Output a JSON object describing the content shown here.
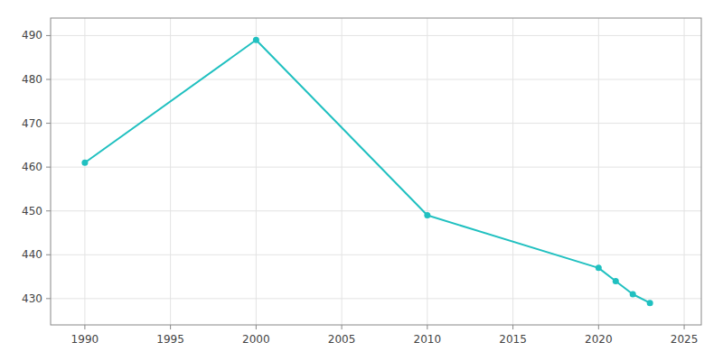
{
  "chart_data": {
    "type": "line",
    "x": [
      1990,
      2000,
      2010,
      2020,
      2021,
      2022,
      2023
    ],
    "values": [
      461,
      489,
      449,
      437,
      434,
      431,
      429
    ],
    "color": "#20c0c0",
    "marker": "circle",
    "xlim": [
      1988,
      2026
    ],
    "ylim": [
      424,
      494
    ],
    "xticks": [
      1990,
      1995,
      2000,
      2005,
      2010,
      2015,
      2020,
      2025
    ],
    "yticks": [
      430,
      440,
      450,
      460,
      470,
      480,
      490
    ],
    "grid": true
  }
}
